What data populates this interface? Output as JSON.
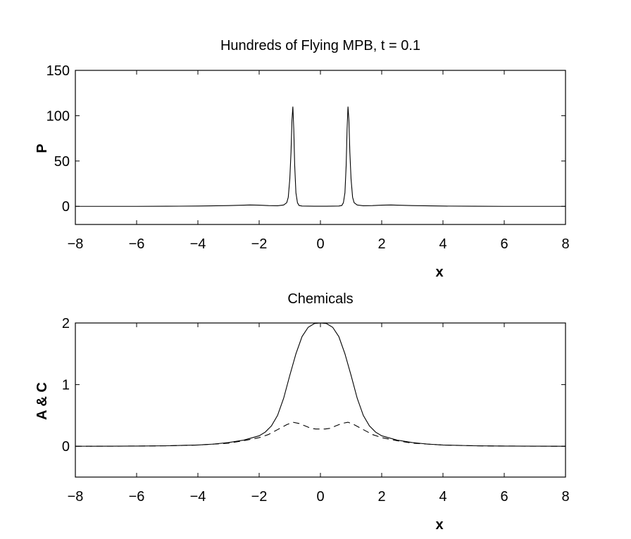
{
  "chart_data": [
    {
      "type": "line",
      "title": "Hundreds of Flying MPB, t = 0.1",
      "xlabel": "x",
      "ylabel": "P",
      "xlim": [
        -8,
        8
      ],
      "ylim": [
        -20,
        150
      ],
      "xticks": [
        "−8",
        "−6",
        "−4",
        "−2",
        "0",
        "2",
        "4",
        "6",
        "8"
      ],
      "yticks": [
        "0",
        "50",
        "100",
        "150"
      ],
      "grid": false,
      "series": [
        {
          "style": "solid",
          "x": [
            -8,
            -6,
            -5,
            -4,
            -3,
            -2.6,
            -2.3,
            -2.0,
            -1.7,
            -1.4,
            -1.2,
            -1.1,
            -1.05,
            -1.0,
            -0.96,
            -0.93,
            -0.9,
            -0.87,
            -0.84,
            -0.8,
            -0.75,
            -0.7,
            -0.6,
            -0.4,
            -0.2,
            0,
            0.2,
            0.4,
            0.6,
            0.7,
            0.75,
            0.8,
            0.84,
            0.87,
            0.9,
            0.93,
            0.96,
            1.0,
            1.05,
            1.1,
            1.2,
            1.4,
            1.7,
            2.0,
            2.3,
            2.6,
            3,
            4,
            5,
            6,
            8
          ],
          "y": [
            0,
            0,
            0.1,
            0.3,
            0.8,
            1.2,
            1.5,
            1.3,
            0.8,
            0.6,
            1.5,
            4,
            10,
            30,
            60,
            95,
            110,
            85,
            45,
            15,
            4,
            1,
            0.3,
            0.2,
            0.1,
            0.1,
            0.1,
            0.2,
            0.3,
            1,
            4,
            15,
            45,
            85,
            110,
            95,
            60,
            30,
            10,
            4,
            1.5,
            0.6,
            0.8,
            1.3,
            1.5,
            1.2,
            0.8,
            0.3,
            0.1,
            0,
            0
          ]
        }
      ]
    },
    {
      "type": "line",
      "title": "Chemicals",
      "xlabel": "x",
      "ylabel": "A & C",
      "xlim": [
        -8,
        8
      ],
      "ylim": [
        -0.5,
        2
      ],
      "xticks": [
        "−8",
        "−6",
        "−4",
        "−2",
        "0",
        "2",
        "4",
        "6",
        "8"
      ],
      "yticks": [
        "0",
        "1",
        "2"
      ],
      "grid": false,
      "series": [
        {
          "style": "solid",
          "x": [
            -8,
            -6,
            -5,
            -4,
            -3.5,
            -3,
            -2.5,
            -2,
            -1.8,
            -1.6,
            -1.4,
            -1.2,
            -1.0,
            -0.8,
            -0.6,
            -0.4,
            -0.2,
            0,
            0.2,
            0.4,
            0.6,
            0.8,
            1.0,
            1.2,
            1.4,
            1.6,
            1.8,
            2,
            2.5,
            3,
            3.5,
            4,
            5,
            6,
            8
          ],
          "y": [
            0,
            0.003,
            0.008,
            0.02,
            0.035,
            0.06,
            0.1,
            0.17,
            0.23,
            0.33,
            0.5,
            0.78,
            1.15,
            1.5,
            1.78,
            1.93,
            1.99,
            2.0,
            1.99,
            1.93,
            1.78,
            1.5,
            1.15,
            0.78,
            0.5,
            0.33,
            0.23,
            0.17,
            0.1,
            0.06,
            0.035,
            0.02,
            0.008,
            0.003,
            0
          ]
        },
        {
          "style": "dashed",
          "x": [
            -8,
            -6,
            -5,
            -4,
            -3,
            -2.5,
            -2,
            -1.7,
            -1.4,
            -1.1,
            -0.9,
            -0.7,
            -0.5,
            -0.3,
            -0.15,
            0,
            0.15,
            0.3,
            0.5,
            0.7,
            0.9,
            1.1,
            1.4,
            1.7,
            2,
            2.5,
            3,
            4,
            5,
            6,
            8
          ],
          "y": [
            0,
            0.003,
            0.008,
            0.02,
            0.05,
            0.09,
            0.14,
            0.19,
            0.27,
            0.35,
            0.39,
            0.37,
            0.33,
            0.29,
            0.28,
            0.28,
            0.28,
            0.29,
            0.33,
            0.37,
            0.39,
            0.35,
            0.27,
            0.19,
            0.14,
            0.09,
            0.05,
            0.02,
            0.008,
            0.003,
            0
          ]
        }
      ]
    }
  ]
}
